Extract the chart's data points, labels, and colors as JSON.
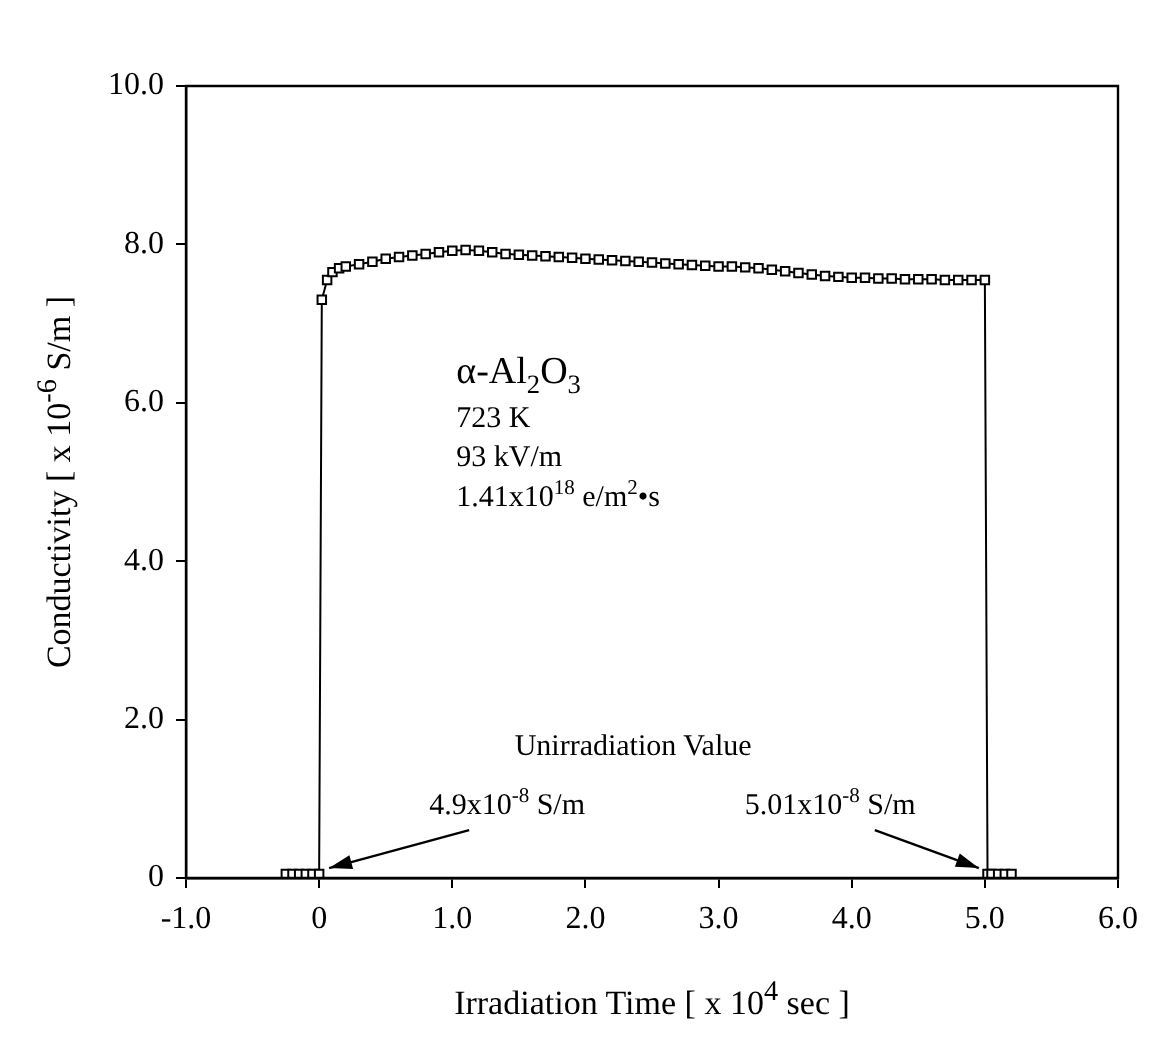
{
  "chart_data": {
    "type": "line",
    "xlabel": "Irradiation Time  [ x 10$^{4}$ sec ]",
    "ylabel": "Conductivity  [ x 10$^{-6}$ S/m ]",
    "x": [
      -0.25,
      -0.2,
      -0.15,
      -0.1,
      -0.05,
      0,
      0.02,
      0.06,
      0.1,
      0.15,
      0.2,
      0.3,
      0.4,
      0.5,
      0.6,
      0.7,
      0.8,
      0.9,
      1.0,
      1.1,
      1.2,
      1.3,
      1.4,
      1.5,
      1.6,
      1.7,
      1.8,
      1.9,
      2.0,
      2.1,
      2.2,
      2.3,
      2.4,
      2.5,
      2.6,
      2.7,
      2.8,
      2.9,
      3.0,
      3.1,
      3.2,
      3.3,
      3.4,
      3.5,
      3.6,
      3.7,
      3.8,
      3.9,
      4.0,
      4.1,
      4.2,
      4.3,
      4.4,
      4.5,
      4.6,
      4.7,
      4.8,
      4.9,
      5.0,
      5.02,
      5.05,
      5.1,
      5.15,
      5.2
    ],
    "series": [
      {
        "color": "#000000",
        "values": [
          0.05,
          0.05,
          0.05,
          0.05,
          0.05,
          0.05,
          7.3,
          7.55,
          7.65,
          7.7,
          7.72,
          7.75,
          7.78,
          7.82,
          7.84,
          7.86,
          7.88,
          7.9,
          7.92,
          7.93,
          7.92,
          7.9,
          7.88,
          7.87,
          7.86,
          7.85,
          7.84,
          7.83,
          7.82,
          7.81,
          7.8,
          7.79,
          7.78,
          7.77,
          7.76,
          7.75,
          7.74,
          7.73,
          7.72,
          7.72,
          7.71,
          7.7,
          7.68,
          7.66,
          7.64,
          7.62,
          7.6,
          7.59,
          7.58,
          7.58,
          7.57,
          7.57,
          7.56,
          7.56,
          7.56,
          7.55,
          7.55,
          7.55,
          7.55,
          0.05,
          0.05,
          0.05,
          0.05,
          0.05
        ]
      }
    ],
    "xlim": [
      -1,
      6
    ],
    "xticks": [
      {
        "value": -1,
        "label": "-1.0"
      },
      0,
      {
        "value": 1,
        "label": "1.0"
      },
      {
        "value": 2,
        "label": "2.0"
      },
      {
        "value": 3,
        "label": "3.0"
      },
      {
        "value": 4,
        "label": "4.0"
      },
      {
        "value": 5,
        "label": "5.0"
      },
      {
        "value": 6,
        "label": "6.0"
      }
    ],
    "ylim": [
      0,
      10
    ],
    "yticks": [
      0,
      {
        "value": 2,
        "label": "2.0"
      },
      {
        "value": 4,
        "label": "4.0"
      },
      {
        "value": 6,
        "label": "6.0"
      },
      {
        "value": 8,
        "label": "8.0"
      },
      {
        "value": 10,
        "label": "10.0"
      }
    ],
    "grid": false,
    "legend": false,
    "marker": "square",
    "line_style": "solid",
    "annotations": [
      "α-Al$_{2}$O$_{3}$",
      "723 K",
      "93 kV/m",
      "1.41x10$^{18}$ e/m$^{2}$•s",
      "Unirradiation Value",
      {
        "text": "4.9x10$^{-8}$ S/m",
        "x": 0,
        "y": 0.05
      },
      {
        "text": "5.01x10$^{-8}$ S/m",
        "x": 5.0,
        "y": 0.05
      }
    ]
  }
}
